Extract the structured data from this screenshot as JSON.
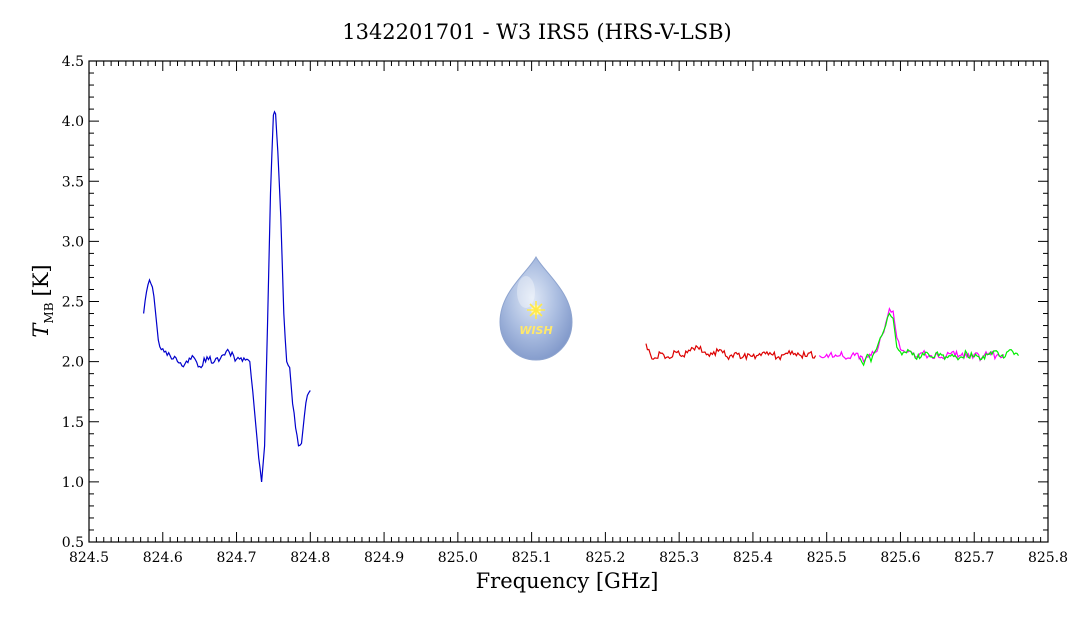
{
  "chart_data": {
    "type": "line",
    "title": "1342201701 - W3 IRS5 (HRS-V-LSB)",
    "xlabel": "Frequency [GHz]",
    "ylabel_main": "T",
    "ylabel_sub": "MB",
    "ylabel_unit": "[K]",
    "xlim": [
      824.5,
      825.8
    ],
    "ylim": [
      0.5,
      4.5
    ],
    "x_ticks": [
      "824.5",
      "824.6",
      "824.7",
      "824.8",
      "824.9",
      "825.0",
      "825.1",
      "825.2",
      "825.3",
      "825.4",
      "825.5",
      "825.6",
      "825.7",
      "825.8"
    ],
    "y_ticks": [
      "0.5",
      "1.0",
      "1.5",
      "2.0",
      "2.5",
      "3.0",
      "3.5",
      "4.0",
      "4.5"
    ],
    "logo_text": "WISH",
    "series": [
      {
        "color": "#0000cc",
        "x": [
          824.574,
          824.578,
          824.582,
          824.586,
          824.59,
          824.594,
          824.598,
          824.602,
          824.61,
          824.62,
          824.63,
          824.64,
          824.65,
          824.66,
          824.67,
          824.68,
          824.69,
          824.7,
          824.71,
          824.718,
          824.722,
          824.726,
          824.73,
          824.734,
          824.738,
          824.742,
          824.746,
          824.75,
          824.753,
          824.756,
          824.76,
          824.764,
          824.768,
          824.772,
          824.776,
          824.78,
          824.784,
          824.788,
          824.792,
          824.796,
          824.8
        ],
        "y": [
          2.4,
          2.58,
          2.68,
          2.62,
          2.42,
          2.18,
          2.1,
          2.08,
          2.05,
          2.0,
          1.98,
          2.05,
          1.96,
          2.04,
          2.0,
          2.05,
          2.08,
          2.02,
          2.03,
          2.0,
          1.75,
          1.48,
          1.2,
          1.0,
          1.3,
          2.3,
          3.4,
          4.05,
          4.06,
          3.75,
          3.2,
          2.4,
          2.0,
          1.95,
          1.65,
          1.45,
          1.3,
          1.32,
          1.55,
          1.72,
          1.76
        ]
      },
      {
        "color": "#dd0000",
        "x": [
          825.255,
          825.265,
          825.275,
          825.285,
          825.295,
          825.305,
          825.315,
          825.325,
          825.335,
          825.345,
          825.355,
          825.365,
          825.375,
          825.385,
          825.395,
          825.405,
          825.415,
          825.425,
          825.435,
          825.445,
          825.455,
          825.465,
          825.475,
          825.485
        ],
        "y": [
          2.15,
          2.02,
          2.07,
          2.04,
          2.08,
          2.05,
          2.09,
          2.12,
          2.08,
          2.06,
          2.1,
          2.04,
          2.07,
          2.03,
          2.06,
          2.05,
          2.08,
          2.06,
          2.04,
          2.07,
          2.06,
          2.05,
          2.07,
          2.05
        ]
      },
      {
        "color": "#ff00ff",
        "x": [
          825.49,
          825.5,
          825.51,
          825.52,
          825.53,
          825.54,
          825.55,
          825.56,
          825.57,
          825.575,
          825.58,
          825.585,
          825.59,
          825.595,
          825.6,
          825.61,
          825.62,
          825.63,
          825.64,
          825.65,
          825.66,
          825.67,
          825.68,
          825.69,
          825.7,
          825.71,
          825.72,
          825.73,
          825.74
        ],
        "y": [
          2.05,
          2.06,
          2.04,
          2.08,
          2.03,
          2.07,
          2.0,
          2.05,
          2.12,
          2.22,
          2.32,
          2.44,
          2.42,
          2.2,
          2.1,
          2.08,
          2.04,
          2.07,
          2.05,
          2.06,
          2.03,
          2.08,
          2.05,
          2.04,
          2.06,
          2.03,
          2.07,
          2.05,
          2.06
        ]
      },
      {
        "color": "#00ee00",
        "x": [
          825.545,
          825.55,
          825.555,
          825.56,
          825.565,
          825.57,
          825.575,
          825.58,
          825.585,
          825.59,
          825.595,
          825.6,
          825.61,
          825.62,
          825.63,
          825.64,
          825.65,
          825.66,
          825.67,
          825.68,
          825.69,
          825.7,
          825.71,
          825.72,
          825.73,
          825.74,
          825.75,
          825.76
        ],
        "y": [
          2.03,
          1.97,
          2.06,
          2.0,
          2.08,
          2.15,
          2.22,
          2.3,
          2.4,
          2.36,
          2.12,
          2.08,
          2.1,
          2.03,
          2.07,
          2.04,
          2.08,
          2.02,
          2.06,
          2.03,
          2.07,
          2.04,
          2.02,
          2.06,
          2.09,
          2.03,
          2.1,
          2.05
        ]
      }
    ]
  }
}
